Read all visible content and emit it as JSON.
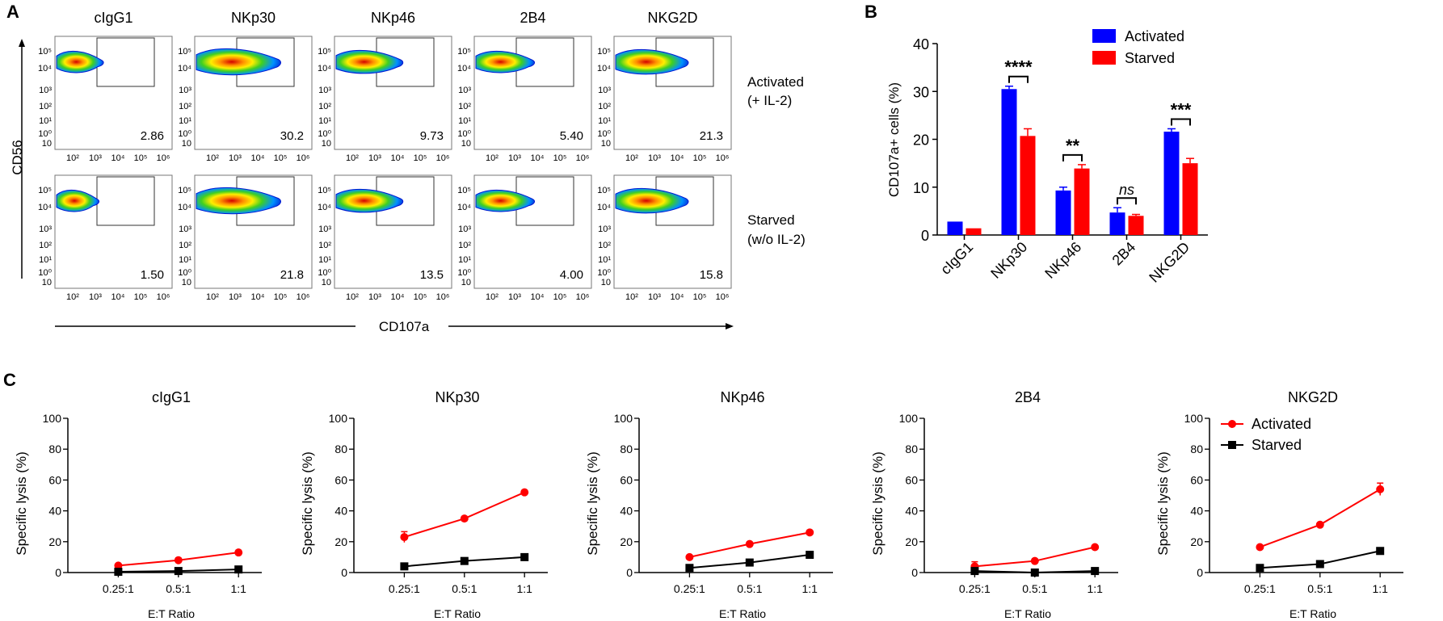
{
  "panels": {
    "a": "A",
    "b": "B",
    "c": "C"
  },
  "panel_a": {
    "columns": [
      "cIgG1",
      "NKp30",
      "NKp46",
      "2B4",
      "NKG2D"
    ],
    "rows": [
      {
        "label_line1": "Activated",
        "label_line2": "(+ IL-2)"
      },
      {
        "label_line1": "Starved",
        "label_line2": "(w/o IL-2)"
      }
    ],
    "percentages": [
      [
        "2.86",
        "30.2",
        "9.73",
        "5.40",
        "21.3"
      ],
      [
        "1.50",
        "21.8",
        "13.5",
        "4.00",
        "15.8"
      ]
    ],
    "y_axis_label": "CD56",
    "x_axis_label": "CD107a",
    "y_tick_labels": [
      "10⁵",
      "10⁴",
      "10³",
      "10²",
      "10¹",
      "10⁰",
      "10"
    ],
    "x_tick_labels": [
      "10²",
      "10³",
      "10⁴",
      "10⁵",
      "10⁶"
    ]
  },
  "chart_data": [
    {
      "type": "bar",
      "title": "",
      "ylabel": "CD107a+ cells (%)",
      "xlabel": "",
      "ylim": [
        0,
        40
      ],
      "yticks": [
        0,
        10,
        20,
        30,
        40
      ],
      "categories": [
        "cIgG1",
        "NKp30",
        "NKp46",
        "2B4",
        "NKG2D"
      ],
      "series": [
        {
          "name": "Activated",
          "color": "#0000ff",
          "values": [
            2.8,
            30.5,
            9.3,
            4.7,
            21.6
          ],
          "errors": [
            0.0,
            0.6,
            0.7,
            1.0,
            0.6
          ]
        },
        {
          "name": "Starved",
          "color": "#ff0000",
          "values": [
            1.4,
            20.7,
            13.9,
            4.0,
            15.0
          ],
          "errors": [
            0.0,
            1.5,
            0.8,
            0.3,
            1.0
          ]
        }
      ],
      "significance": [
        {
          "category": "NKp30",
          "label": "****"
        },
        {
          "category": "NKp46",
          "label": "**"
        },
        {
          "category": "2B4",
          "label": "ns"
        },
        {
          "category": "NKG2D",
          "label": "***"
        }
      ],
      "legend_position": "top-right"
    },
    {
      "type": "line",
      "title": "cIgG1",
      "xlabel": "E:T Ratio",
      "ylabel": "Specific lysis (%)",
      "x": [
        "0.25:1",
        "0.5:1",
        "1:1"
      ],
      "ylim": [
        0,
        100
      ],
      "yticks": [
        0,
        20,
        40,
        60,
        80,
        100
      ],
      "series": [
        {
          "name": "Activated",
          "color": "#ff0000",
          "marker": "circle",
          "values": [
            4.5,
            8,
            13
          ],
          "errors": [
            1,
            0.5,
            0.5
          ]
        },
        {
          "name": "Starved",
          "color": "#000000",
          "marker": "square",
          "values": [
            0.5,
            1,
            2
          ],
          "errors": [
            0.3,
            0.3,
            0.5
          ]
        }
      ]
    },
    {
      "type": "line",
      "title": "NKp30",
      "xlabel": "E:T Ratio",
      "ylabel": "Specific lysis (%)",
      "x": [
        "0.25:1",
        "0.5:1",
        "1:1"
      ],
      "ylim": [
        0,
        100
      ],
      "yticks": [
        0,
        20,
        40,
        60,
        80,
        100
      ],
      "series": [
        {
          "name": "Activated",
          "color": "#ff0000",
          "marker": "circle",
          "values": [
            23,
            35,
            52
          ],
          "errors": [
            3.5,
            1,
            1
          ]
        },
        {
          "name": "Starved",
          "color": "#000000",
          "marker": "square",
          "values": [
            4,
            7.5,
            10
          ],
          "errors": [
            0.8,
            0.5,
            0.5
          ]
        }
      ]
    },
    {
      "type": "line",
      "title": "NKp46",
      "xlabel": "E:T Ratio",
      "ylabel": "Specific lysis (%)",
      "x": [
        "0.25:1",
        "0.5:1",
        "1:1"
      ],
      "ylim": [
        0,
        100
      ],
      "yticks": [
        0,
        20,
        40,
        60,
        80,
        100
      ],
      "series": [
        {
          "name": "Activated",
          "color": "#ff0000",
          "marker": "circle",
          "values": [
            10,
            18.5,
            26
          ],
          "errors": [
            0.8,
            0.5,
            0.5
          ]
        },
        {
          "name": "Starved",
          "color": "#000000",
          "marker": "square",
          "values": [
            3,
            6.5,
            11.5
          ],
          "errors": [
            0.5,
            0.5,
            0.5
          ]
        }
      ]
    },
    {
      "type": "line",
      "title": "2B4",
      "xlabel": "E:T Ratio",
      "ylabel": "Specific lysis (%)",
      "x": [
        "0.25:1",
        "0.5:1",
        "1:1"
      ],
      "ylim": [
        0,
        100
      ],
      "yticks": [
        0,
        20,
        40,
        60,
        80,
        100
      ],
      "series": [
        {
          "name": "Activated",
          "color": "#ff0000",
          "marker": "circle",
          "values": [
            4,
            7.5,
            16.5
          ],
          "errors": [
            3,
            0.5,
            0.5
          ]
        },
        {
          "name": "Starved",
          "color": "#000000",
          "marker": "square",
          "values": [
            1,
            0,
            1
          ],
          "errors": [
            0.5,
            0.3,
            0.5
          ]
        }
      ]
    },
    {
      "type": "line",
      "title": "NKG2D",
      "xlabel": "E:T Ratio",
      "ylabel": "Specific lysis (%)",
      "x": [
        "0.25:1",
        "0.5:1",
        "1:1"
      ],
      "ylim": [
        0,
        100
      ],
      "yticks": [
        0,
        20,
        40,
        60,
        80,
        100
      ],
      "legend_position": "top-left",
      "series": [
        {
          "name": "Activated",
          "color": "#ff0000",
          "marker": "circle",
          "values": [
            16.5,
            31,
            54
          ],
          "errors": [
            0.5,
            0.5,
            4
          ]
        },
        {
          "name": "Starved",
          "color": "#000000",
          "marker": "square",
          "values": [
            3,
            5.5,
            14
          ],
          "errors": [
            0.5,
            0.5,
            0.8
          ]
        }
      ]
    }
  ]
}
